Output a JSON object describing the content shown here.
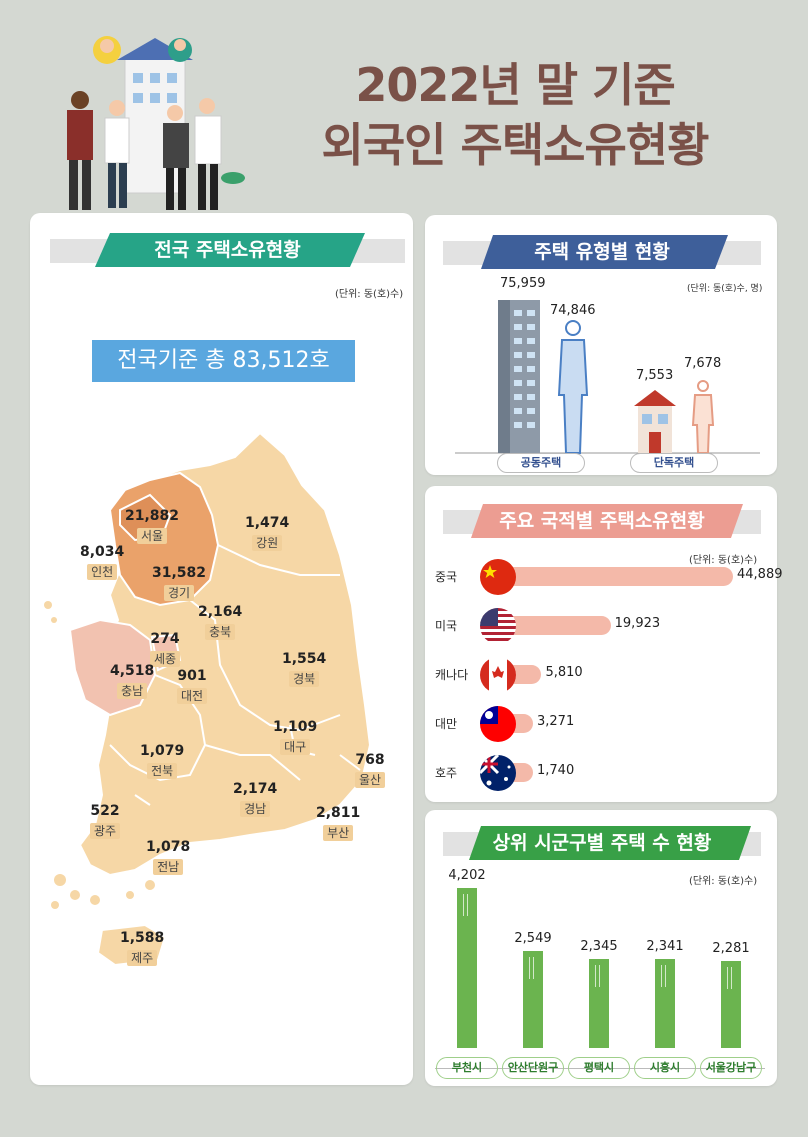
{
  "header": {
    "title_line1": "2022년 말 기준",
    "title_line2": "외국인 주택소유현황"
  },
  "national": {
    "banner": "전국 주택소유현황",
    "unit": "(단위: 동(호)수)",
    "total": "전국기준 총 83,512호",
    "regions": [
      {
        "name": "서울",
        "value": "21,882"
      },
      {
        "name": "인천",
        "value": "8,034"
      },
      {
        "name": "경기",
        "value": "31,582"
      },
      {
        "name": "강원",
        "value": "1,474"
      },
      {
        "name": "충북",
        "value": "2,164"
      },
      {
        "name": "세종",
        "value": "274"
      },
      {
        "name": "충남",
        "value": "4,518"
      },
      {
        "name": "대전",
        "value": "901"
      },
      {
        "name": "경북",
        "value": "1,554"
      },
      {
        "name": "대구",
        "value": "1,109"
      },
      {
        "name": "전북",
        "value": "1,079"
      },
      {
        "name": "울산",
        "value": "768"
      },
      {
        "name": "경남",
        "value": "2,174"
      },
      {
        "name": "부산",
        "value": "2,811"
      },
      {
        "name": "광주",
        "value": "522"
      },
      {
        "name": "전남",
        "value": "1,078"
      },
      {
        "name": "제주",
        "value": "1,588"
      }
    ]
  },
  "housing_type": {
    "banner": "주택 유형별 현황",
    "unit": "(단위: 동(호)수, 명)",
    "groups": [
      {
        "label": "공동주택",
        "houses": "75,959",
        "people": "74,846"
      },
      {
        "label": "단독주택",
        "houses": "7,553",
        "people": "7,678"
      }
    ]
  },
  "nationality": {
    "banner": "주요 국적별 주택소유현황",
    "unit": "(단위: 동(호)수)",
    "rows": [
      {
        "country": "중국",
        "value": "44,889",
        "amount": 44889,
        "flag": "china-flag-icon"
      },
      {
        "country": "미국",
        "value": "19,923",
        "amount": 19923,
        "flag": "usa-flag-icon"
      },
      {
        "country": "캐나다",
        "value": "5,810",
        "amount": 5810,
        "flag": "canada-flag-icon"
      },
      {
        "country": "대만",
        "value": "3,271",
        "amount": 3271,
        "flag": "taiwan-flag-icon"
      },
      {
        "country": "호주",
        "value": "1,740",
        "amount": 1740,
        "flag": "australia-flag-icon"
      }
    ]
  },
  "top_cities": {
    "banner": "상위 시군구별 주택 수 현황",
    "unit": "(단위: 동(호)수)",
    "cities": [
      {
        "name": "부천시",
        "value": "4,202",
        "amount": 4202
      },
      {
        "name": "안산단원구",
        "value": "2,549",
        "amount": 2549
      },
      {
        "name": "평택시",
        "value": "2,345",
        "amount": 2345
      },
      {
        "name": "시흥시",
        "value": "2,341",
        "amount": 2341
      },
      {
        "name": "서울강남구",
        "value": "2,281",
        "amount": 2281
      }
    ]
  },
  "colors": {
    "title": "#7a5148",
    "national_banner": "#26a487",
    "type_banner": "#3e5f9a",
    "nationality_banner": "#ec9d92",
    "cities_banner": "#38a047",
    "bar_pink": "#f4b9a9",
    "bar_green": "#6bb44f"
  }
}
